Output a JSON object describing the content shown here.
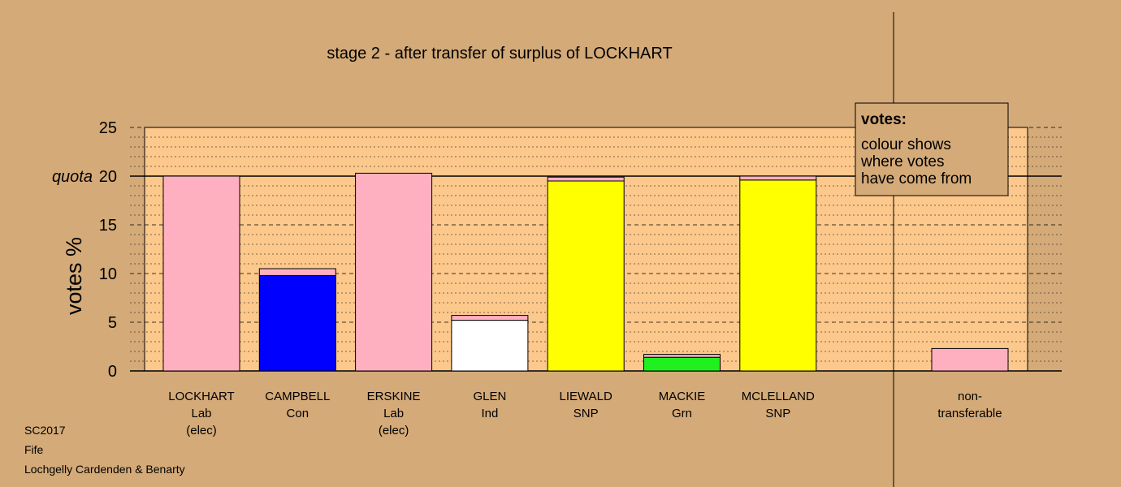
{
  "title": "stage 2 - after transfer of surplus of LOCKHART",
  "footer": [
    "SC2017",
    "Fife",
    "Lochgelly Cardenden & Benarty"
  ],
  "legend": {
    "heading": "votes:",
    "lines": [
      "colour shows",
      "where votes",
      "have come from"
    ]
  },
  "colors": {
    "background": "#d4aa78",
    "plot_area": "#fcc88c",
    "Lab": "#ffb0c0",
    "Con": "#0000ff",
    "Ind": "#ffffff",
    "SNP": "#ffff00",
    "Grn": "#20f020"
  },
  "chart_data": {
    "type": "bar",
    "stacked": true,
    "ylabel": "votes %",
    "ylim": [
      0,
      25
    ],
    "yticks": [
      0,
      5,
      10,
      15,
      20,
      25
    ],
    "quota": 20,
    "quota_label": "quota",
    "grid": true,
    "legend_position": "top-right",
    "categories": [
      {
        "name": "LOCKHART",
        "party": "Lab",
        "note": "(elec)",
        "segments": [
          {
            "source": "Lab",
            "value": 20.0
          }
        ]
      },
      {
        "name": "CAMPBELL",
        "party": "Con",
        "note": "",
        "segments": [
          {
            "source": "Con",
            "value": 9.8
          },
          {
            "source": "Lab",
            "value": 0.7
          }
        ]
      },
      {
        "name": "ERSKINE",
        "party": "Lab",
        "note": "(elec)",
        "segments": [
          {
            "source": "Lab",
            "value": 20.3
          }
        ]
      },
      {
        "name": "GLEN",
        "party": "Ind",
        "note": "",
        "segments": [
          {
            "source": "Ind",
            "value": 5.2
          },
          {
            "source": "Lab",
            "value": 0.5
          }
        ]
      },
      {
        "name": "LIEWALD",
        "party": "SNP",
        "note": "",
        "segments": [
          {
            "source": "SNP",
            "value": 19.5
          },
          {
            "source": "Lab",
            "value": 0.4
          }
        ]
      },
      {
        "name": "MACKIE",
        "party": "Grn",
        "note": "",
        "segments": [
          {
            "source": "Grn",
            "value": 1.4
          },
          {
            "source": "Lab",
            "value": 0.3
          }
        ]
      },
      {
        "name": "MCLELLAND",
        "party": "SNP",
        "note": "",
        "segments": [
          {
            "source": "SNP",
            "value": 19.6
          },
          {
            "source": "Lab",
            "value": 0.4
          }
        ]
      }
    ],
    "non_transferable": {
      "label_lines": [
        "non-",
        "transferable"
      ],
      "segments": [
        {
          "source": "Lab",
          "value": 2.3
        }
      ]
    }
  }
}
